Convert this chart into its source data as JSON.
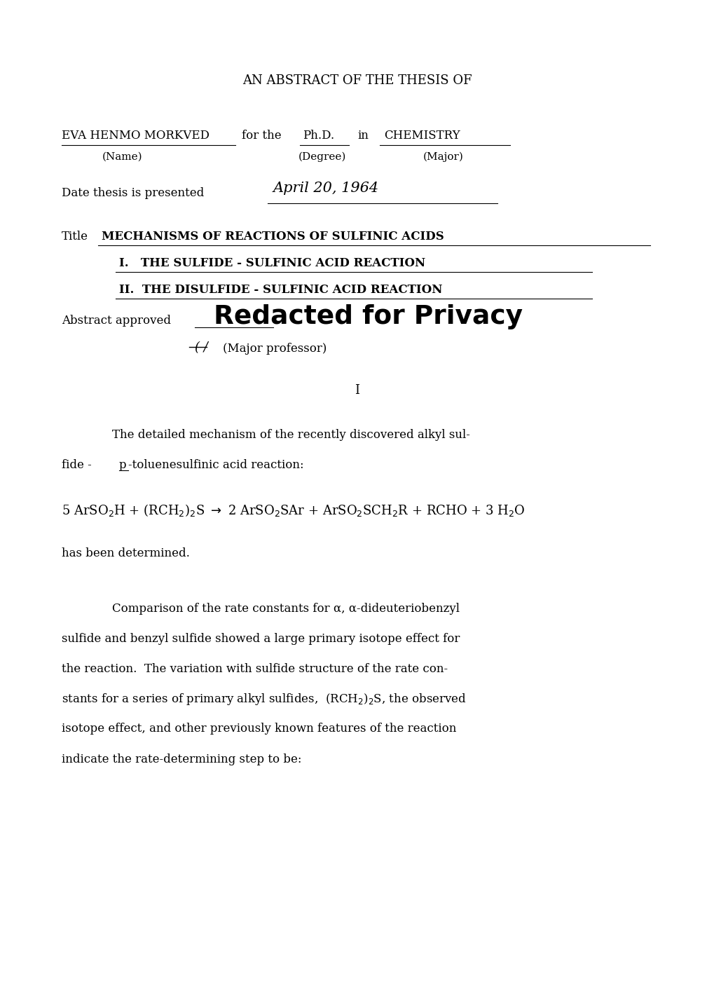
{
  "bg_color": "#ffffff",
  "page_width": 10.2,
  "page_height": 14.01,
  "dpi": 100,
  "header_title": "AN ABSTRACT OF THE THESIS OF",
  "name_label": "EVA HENMO MORKVED",
  "for_the_text": "for the",
  "degree_label": "Ph.D.",
  "in_text": "in",
  "major_label": "CHEMISTRY",
  "name_sub": "(Name)",
  "degree_sub": "(Degree)",
  "major_sub": "(Major)",
  "date_prefix": "Date thesis is presented",
  "date_handwritten": "April 20, 1964",
  "title_prefix": "Title",
  "title_main": "MECHANISMS OF REACTIONS OF SULFINIC ACIDS",
  "subtitle1": "I.   THE SULFIDE - SULFINIC ACID REACTION",
  "subtitle2": "II.  THE DISULFIDE - SULFINIC ACID REACTION",
  "abstract_approved_prefix": "Abstract approved",
  "redacted_text": "Redacted for Privacy",
  "major_professor": "(Major professor)",
  "page_number": "I",
  "para1_line1": "The detailed mechanism of the recently discovered alkyl sul-",
  "para1_line2_a": "fide - ",
  "para1_line2_p": "p",
  "para1_line2_b": "-toluenesulfinic acid reaction:",
  "equation_main": "5 ArSO",
  "para2_line1": "has been determined.",
  "para3_line1": "Comparison of the rate constants for α, α-dideuteriobenzyl",
  "para3_line2": "sulfide and benzyl sulfide showed a large primary isotope effect for",
  "para3_line3": "the reaction.  The variation with sulfide structure of the rate con-",
  "para3_line4": "stants for a series of primary alkyl sulfides,  (RCH",
  "para3_line4b": ")₂S, the observed",
  "para3_line5": "isotope effect, and other previously known features of the reaction",
  "para3_line6": "indicate the rate-determining step to be:"
}
